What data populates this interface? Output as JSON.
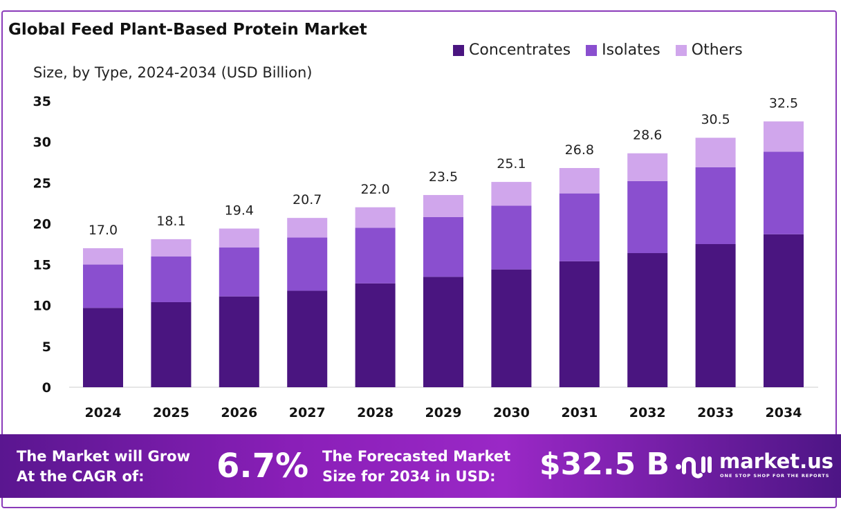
{
  "chart_data": {
    "type": "bar",
    "stacked": true,
    "title": "Global Feed Plant-Based Protein Market",
    "subtitle": "Size, by Type, 2024-2034 (USD Billion)",
    "categories": [
      "2024",
      "2025",
      "2026",
      "2027",
      "2028",
      "2029",
      "2030",
      "2031",
      "2032",
      "2033",
      "2034"
    ],
    "series": [
      {
        "name": "Concentrates",
        "color": "#4a1580",
        "values": [
          9.7,
          10.4,
          11.1,
          11.8,
          12.7,
          13.5,
          14.4,
          15.4,
          16.4,
          17.5,
          18.7
        ]
      },
      {
        "name": "Isolates",
        "color": "#8a4fcf",
        "values": [
          5.3,
          5.6,
          6.0,
          6.5,
          6.8,
          7.3,
          7.8,
          8.3,
          8.8,
          9.4,
          10.1
        ]
      },
      {
        "name": "Others",
        "color": "#d0a6ec",
        "values": [
          2.0,
          2.1,
          2.3,
          2.4,
          2.5,
          2.7,
          2.9,
          3.1,
          3.4,
          3.6,
          3.7
        ]
      }
    ],
    "totals": [
      "17.0",
      "18.1",
      "19.4",
      "20.7",
      "22.0",
      "23.5",
      "25.1",
      "26.8",
      "28.6",
      "30.5",
      "32.5"
    ],
    "yticks": [
      0,
      5,
      10,
      15,
      20,
      25,
      30,
      35
    ],
    "ylim": [
      0,
      35
    ],
    "grid": false,
    "legend": "top-right"
  },
  "footer": {
    "cagr_label_1": "The Market will Grow",
    "cagr_label_2": "At the CAGR of:",
    "cagr_value": "6.7%",
    "forecast_label_1": "The Forecasted Market",
    "forecast_label_2": "Size for 2034 in USD:",
    "forecast_value": "$32.5 B",
    "brand": "market.us",
    "tagline": "ONE STOP SHOP FOR THE REPORTS"
  }
}
